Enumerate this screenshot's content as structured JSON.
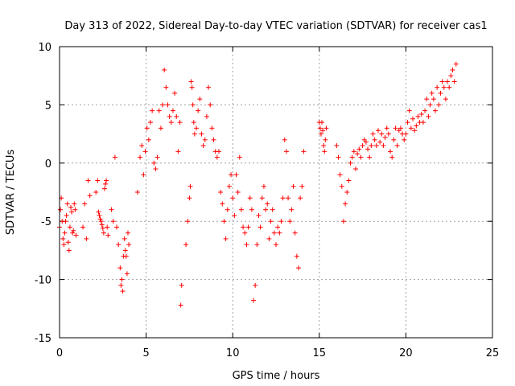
{
  "chart_data": {
    "type": "scatter",
    "title": "Day 313 of 2022, Sidereal Day-to-day VTEC variation (SDTVAR) for receiver cas1",
    "xlabel": "GPS time / hours",
    "ylabel": "SDTVAR / TECUs",
    "xlim": [
      0,
      25
    ],
    "ylim": [
      -15,
      10
    ],
    "xticks": [
      0,
      5,
      10,
      15,
      20,
      25
    ],
    "yticks": [
      -15,
      -10,
      -5,
      0,
      5,
      10
    ],
    "xtick_labels": [
      "0",
      "5",
      "10",
      "15",
      "20",
      "25"
    ],
    "ytick_labels": [
      "-15",
      "-10",
      "-5",
      "0",
      "5",
      "10"
    ],
    "grid": true,
    "marker": "+",
    "color": "#ff0000",
    "series": [
      {
        "name": "SDTVAR",
        "x": [
          0.0,
          0.05,
          0.1,
          0.15,
          0.2,
          0.25,
          0.3,
          0.35,
          0.4,
          0.45,
          0.5,
          0.55,
          0.6,
          0.65,
          0.7,
          0.75,
          0.8,
          0.85,
          0.9,
          0.95,
          1.35,
          1.45,
          1.55,
          1.65,
          1.75,
          2.1,
          2.2,
          2.25,
          2.3,
          2.35,
          2.4,
          2.45,
          2.5,
          2.55,
          2.6,
          2.65,
          2.7,
          2.75,
          2.8,
          3.0,
          3.1,
          3.2,
          3.3,
          3.4,
          3.5,
          3.55,
          3.6,
          3.65,
          3.7,
          3.75,
          3.8,
          3.85,
          3.9,
          3.95,
          4.0,
          4.5,
          4.65,
          4.75,
          4.85,
          4.95,
          5.05,
          5.15,
          5.25,
          5.35,
          5.45,
          5.55,
          5.65,
          5.75,
          5.85,
          5.95,
          6.05,
          6.15,
          6.25,
          6.35,
          6.45,
          6.55,
          6.65,
          6.75,
          6.85,
          6.95,
          7.0,
          7.05,
          7.3,
          7.4,
          7.5,
          7.55,
          7.6,
          7.65,
          7.7,
          7.75,
          7.8,
          7.9,
          8.0,
          8.1,
          8.2,
          8.3,
          8.4,
          8.5,
          8.6,
          8.7,
          8.8,
          8.9,
          9.0,
          9.1,
          9.2,
          9.3,
          9.4,
          9.5,
          9.6,
          9.7,
          9.8,
          9.9,
          10.0,
          10.1,
          10.2,
          10.3,
          10.4,
          10.5,
          10.6,
          10.7,
          10.8,
          10.9,
          11.0,
          11.1,
          11.2,
          11.3,
          11.4,
          11.5,
          11.6,
          11.7,
          11.8,
          11.9,
          12.0,
          12.1,
          12.2,
          12.3,
          12.4,
          12.5,
          12.6,
          12.7,
          12.8,
          12.9,
          13.0,
          13.1,
          13.2,
          13.3,
          13.4,
          13.5,
          13.6,
          13.7,
          13.8,
          13.9,
          14.0,
          14.1,
          15.0,
          15.05,
          15.1,
          15.15,
          15.2,
          15.25,
          15.3,
          15.35,
          15.4,
          16.0,
          16.1,
          16.2,
          16.3,
          16.4,
          16.5,
          16.6,
          16.7,
          16.8,
          16.9,
          17.0,
          17.1,
          17.2,
          17.3,
          17.4,
          17.5,
          17.6,
          17.7,
          17.8,
          17.9,
          18.0,
          18.1,
          18.2,
          18.3,
          18.4,
          18.5,
          18.6,
          18.7,
          18.8,
          18.9,
          19.0,
          19.1,
          19.2,
          19.3,
          19.4,
          19.5,
          19.6,
          19.7,
          19.8,
          19.9,
          20.0,
          20.1,
          20.2,
          20.3,
          20.4,
          20.5,
          20.6,
          20.7,
          20.8,
          20.9,
          21.0,
          21.1,
          21.2,
          21.3,
          21.4,
          21.5,
          21.6,
          21.7,
          21.8,
          21.9,
          22.0,
          22.1,
          22.2,
          22.3,
          22.4,
          22.5,
          22.6,
          22.7,
          22.8,
          22.9
        ],
        "y": [
          -5.5,
          -4.0,
          -3.0,
          -5.0,
          -6.5,
          -7.0,
          -6.0,
          -5.0,
          -4.5,
          -3.5,
          -6.8,
          -7.5,
          -5.5,
          -3.8,
          -4.2,
          -6.0,
          -5.8,
          -3.5,
          -4.0,
          -6.2,
          -5.5,
          -3.5,
          -6.5,
          -1.5,
          -2.8,
          -2.5,
          -1.5,
          -4.2,
          -4.5,
          -4.8,
          -5.0,
          -5.3,
          -5.6,
          -6.0,
          -2.2,
          -1.8,
          -1.5,
          -5.5,
          -6.2,
          -4.0,
          -5.0,
          0.5,
          -5.5,
          -7.0,
          -9.0,
          -10.5,
          -10.0,
          -11.0,
          -8.0,
          -6.5,
          -7.5,
          -8.0,
          -9.5,
          -6.0,
          -7.0,
          -2.5,
          0.5,
          1.5,
          -1.0,
          1.0,
          3.0,
          2.0,
          3.5,
          4.5,
          0.0,
          -0.5,
          0.5,
          4.5,
          3.0,
          5.0,
          8.0,
          6.5,
          5.0,
          4.0,
          3.5,
          4.5,
          6.0,
          4.0,
          1.0,
          3.5,
          -12.2,
          -10.5,
          -7.0,
          -5.0,
          -3.0,
          -2.0,
          7.0,
          6.5,
          5.0,
          3.5,
          2.5,
          3.0,
          4.5,
          5.5,
          2.5,
          1.5,
          2.0,
          4.0,
          6.5,
          5.0,
          3.0,
          2.0,
          1.0,
          0.5,
          1.0,
          -2.5,
          -3.5,
          -5.0,
          -6.5,
          -4.0,
          -2.0,
          -1.0,
          -3.0,
          -4.5,
          -1.0,
          -2.5,
          0.5,
          -4.0,
          -5.5,
          -6.0,
          -7.0,
          -5.5,
          -3.0,
          -4.0,
          -11.8,
          -10.5,
          -7.0,
          -4.5,
          -5.5,
          -3.0,
          -2.0,
          -4.0,
          -3.5,
          -6.5,
          -5.0,
          -4.0,
          -6.0,
          -7.0,
          -5.5,
          -6.0,
          -5.0,
          -3.0,
          2.0,
          1.0,
          -3.0,
          -5.0,
          -4.0,
          -2.0,
          -6.0,
          -8.0,
          -9.0,
          -3.0,
          -2.0,
          1.0,
          3.5,
          3.0,
          2.5,
          3.5,
          2.8,
          1.5,
          1.0,
          2.0,
          3.0,
          1.5,
          0.5,
          -1.0,
          -2.0,
          -5.0,
          -3.5,
          -2.5,
          -1.5,
          0.0,
          0.5,
          1.0,
          -0.5,
          0.8,
          1.2,
          0.5,
          1.5,
          2.0,
          1.8,
          1.2,
          0.5,
          1.5,
          2.5,
          2.0,
          1.5,
          2.8,
          1.8,
          2.5,
          1.5,
          2.2,
          3.0,
          2.5,
          1.0,
          0.5,
          2.0,
          3.0,
          1.5,
          2.8,
          3.0,
          2.5,
          2.0,
          2.5,
          3.5,
          4.5,
          3.0,
          3.8,
          2.8,
          3.2,
          4.0,
          3.5,
          4.2,
          3.5,
          4.5,
          5.5,
          4.0,
          5.0,
          6.0,
          5.5,
          4.5,
          6.5,
          5.0,
          6.0,
          7.0,
          6.5,
          5.5,
          7.0,
          6.5,
          7.5,
          8.0,
          7.0,
          8.5
        ]
      }
    ]
  }
}
